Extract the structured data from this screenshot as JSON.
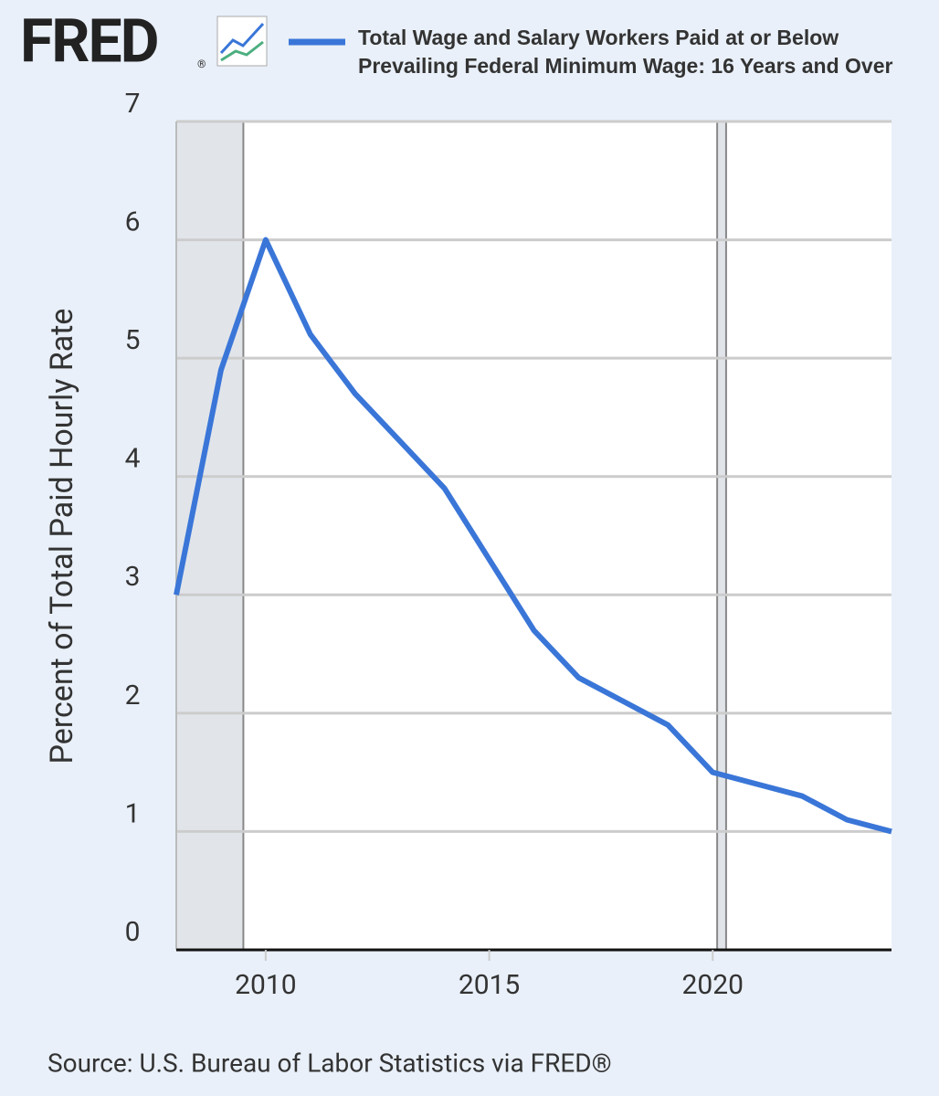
{
  "chart_data": {
    "type": "line",
    "logo": "FRED",
    "logo_mark": "®",
    "y_label": "Percent of Total Paid Hourly Rate",
    "source": "Source: U.S. Bureau of Labor Statistics via FRED®",
    "x": [
      2008,
      2009,
      2010,
      2011,
      2012,
      2013,
      2014,
      2015,
      2016,
      2017,
      2018,
      2019,
      2020,
      2021,
      2022,
      2023,
      2024
    ],
    "series": [
      {
        "name": "Total Wage and Salary Workers Paid at or Below Prevailing Federal Minimum Wage: 16 Years and Over",
        "color": "#3a76d8",
        "values": [
          3.0,
          4.9,
          6.0,
          5.2,
          4.7,
          4.3,
          3.9,
          3.3,
          2.7,
          2.3,
          2.1,
          1.9,
          1.5,
          1.4,
          1.3,
          1.1,
          1.0
        ]
      }
    ],
    "shaded_periods": [
      {
        "start": 2008,
        "end": 2009.5
      },
      {
        "start": 2020.1,
        "end": 2020.3
      }
    ],
    "xlim": [
      2008,
      2024
    ],
    "xticks": [
      2010,
      2015,
      2020
    ],
    "ylim": [
      0,
      7
    ],
    "yticks": [
      0,
      1,
      2,
      3,
      4,
      5,
      6,
      7
    ],
    "grid": true
  }
}
